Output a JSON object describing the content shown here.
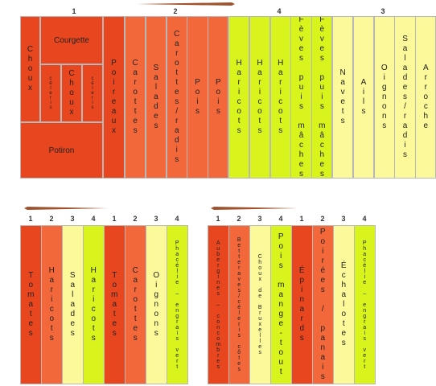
{
  "top": {
    "group_labels": [
      "1",
      "2",
      "4",
      "3"
    ],
    "cells": [
      "Choux",
      "Courgette",
      "céleris",
      "Choux",
      "céleris",
      "Potiron",
      "Poireaux",
      "Carottes",
      "Salades",
      "Carottes/radis",
      "Pois",
      "Pois",
      "Haricots",
      "Haricots",
      "Haricots",
      "Fèves puis mâches",
      "Fèves puis mâches",
      "Navets",
      "Ails",
      "Oignons",
      "Salades/radis",
      "Arroche"
    ]
  },
  "bottom_left": {
    "numbers": [
      "1",
      "2",
      "3",
      "4",
      "1",
      "2",
      "3",
      "4"
    ],
    "cells": [
      "Tomates",
      "Haricots",
      "Salades",
      "Haricots",
      "Tomates",
      "Carottes",
      "Oignons",
      "Phacélie – engrais vert"
    ]
  },
  "bottom_right": {
    "numbers": [
      "1",
      "2",
      "3",
      "4",
      "1",
      "2",
      "3",
      "4"
    ],
    "cells": [
      "Aubergines – concombres",
      "Betteraves/céleris côtes",
      "Choux de Bruxelles",
      "Pois mange-tout",
      "Épinards",
      "Poirées / panais",
      "Échalotes",
      "Phacélie – engrais vert"
    ]
  }
}
